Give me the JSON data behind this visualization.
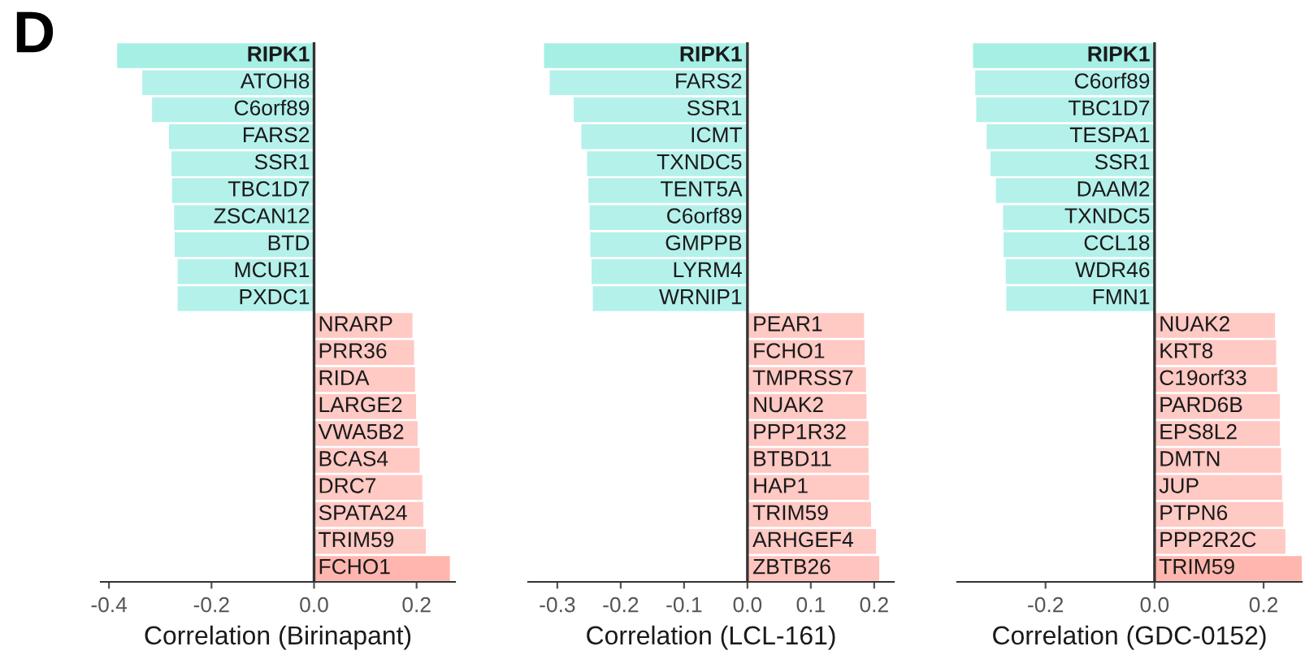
{
  "chart_data": [
    {
      "type": "bar",
      "orientation": "horizontal",
      "annotations": [
        "D"
      ],
      "xlabel": "Correlation (Birinapant)",
      "categories": [
        "RIPK1",
        "ATOH8",
        "C6orf89",
        "FARS2",
        "SSR1",
        "TBC1D7",
        "ZSCAN12",
        "BTD",
        "MCUR1",
        "PXDC1",
        "NRARP",
        "PRR36",
        "RIDA",
        "LARGE2",
        "VWA5B2",
        "BCAS4",
        "DRC7",
        "SPATA24",
        "TRIM59",
        "FCHO1"
      ],
      "values": [
        -0.384,
        -0.335,
        -0.316,
        -0.283,
        -0.278,
        -0.277,
        -0.273,
        -0.272,
        -0.266,
        -0.266,
        0.192,
        0.195,
        0.197,
        0.199,
        0.202,
        0.206,
        0.211,
        0.213,
        0.218,
        0.265
      ],
      "colors": [
        "#a6efe5",
        "#b4f1ea",
        "#b4f1ea",
        "#b4f1ea",
        "#b4f1ea",
        "#b4f1ea",
        "#b4f1ea",
        "#b4f1ea",
        "#b4f1ea",
        "#b4f1ea",
        "#ffc9c4",
        "#ffc9c4",
        "#ffc9c4",
        "#ffc9c4",
        "#ffc9c4",
        "#ffc9c4",
        "#ffc9c4",
        "#ffc9c4",
        "#ffc9c4",
        "#ffb6ae"
      ],
      "xlim": [
        -0.416,
        0.275
      ],
      "xticks": [
        {
          "value": -0.4,
          "label": "-0.4"
        },
        {
          "value": -0.2,
          "label": "-0.2"
        },
        {
          "value": 0,
          "label": "0.0"
        },
        {
          "value": 0.2,
          "label": "0.2"
        }
      ],
      "ref_lines": [
        {
          "axis": "x",
          "value": 0,
          "color": "#333333"
        }
      ],
      "tick_labels": "x",
      "grid": false,
      "legend": false
    },
    {
      "type": "bar",
      "orientation": "horizontal",
      "xlabel": "Correlation (LCL-161)",
      "categories": [
        "RIPK1",
        "FARS2",
        "SSR1",
        "ICMT",
        "TXNDC5",
        "TENT5A",
        "C6orf89",
        "GMPPB",
        "LYRM4",
        "WRNIP1",
        "PEAR1",
        "FCHO1",
        "TMPRSS7",
        "NUAK2",
        "PPP1R32",
        "BTBD11",
        "HAP1",
        "TRIM59",
        "ARHGEF4",
        "ZBTB26"
      ],
      "values": [
        -0.321,
        -0.312,
        -0.274,
        -0.262,
        -0.253,
        -0.251,
        -0.249,
        -0.248,
        -0.246,
        -0.244,
        0.184,
        0.185,
        0.187,
        0.188,
        0.191,
        0.191,
        0.192,
        0.195,
        0.203,
        0.208
      ],
      "colors": [
        "#a6efe5",
        "#b4f1ea",
        "#b4f1ea",
        "#b4f1ea",
        "#b4f1ea",
        "#b4f1ea",
        "#b4f1ea",
        "#b4f1ea",
        "#b4f1ea",
        "#b4f1ea",
        "#ffc9c4",
        "#ffc9c4",
        "#ffc9c4",
        "#ffc9c4",
        "#ffc9c4",
        "#ffc9c4",
        "#ffc9c4",
        "#ffc9c4",
        "#ffc9c4",
        "#ffc4bf"
      ],
      "xlim": [
        -0.346,
        0.231
      ],
      "xticks": [
        {
          "value": -0.3,
          "label": "-0.3"
        },
        {
          "value": -0.2,
          "label": "-0.2"
        },
        {
          "value": -0.1,
          "label": "-0.1"
        },
        {
          "value": 0,
          "label": "0.0"
        },
        {
          "value": 0.1,
          "label": "0.1"
        },
        {
          "value": 0.2,
          "label": "0.2"
        }
      ],
      "ref_lines": [
        {
          "axis": "x",
          "value": 0,
          "color": "#333333"
        }
      ],
      "tick_labels": "x",
      "grid": false,
      "legend": false
    },
    {
      "type": "bar",
      "orientation": "horizontal",
      "xlabel": "Correlation (GDC-0152)",
      "categories": [
        "RIPK1",
        "C6orf89",
        "TBC1D7",
        "TESPA1",
        "SSR1",
        "DAAM2",
        "TXNDC5",
        "CCL18",
        "WDR46",
        "FMN1",
        "NUAK2",
        "KRT8",
        "C19orf33",
        "PARD6B",
        "EPS8L2",
        "DMTN",
        "JUP",
        "PTPN6",
        "PPP2R2C",
        "TRIM59"
      ],
      "values": [
        -0.333,
        -0.329,
        -0.327,
        -0.308,
        -0.301,
        -0.291,
        -0.278,
        -0.277,
        -0.273,
        -0.272,
        0.221,
        0.223,
        0.225,
        0.23,
        0.23,
        0.232,
        0.234,
        0.236,
        0.24,
        0.27
      ],
      "colors": [
        "#a6efe5",
        "#b4f1ea",
        "#b4f1ea",
        "#b4f1ea",
        "#b4f1ea",
        "#b4f1ea",
        "#b4f1ea",
        "#b4f1ea",
        "#b4f1ea",
        "#b4f1ea",
        "#ffc9c4",
        "#ffc9c4",
        "#ffc9c4",
        "#ffc9c4",
        "#ffc9c4",
        "#ffc9c4",
        "#ffc9c4",
        "#ffc9c4",
        "#ffc9c4",
        "#ffb6ae"
      ],
      "xlim": [
        -0.362,
        0.27
      ],
      "xticks": [
        {
          "value": -0.2,
          "label": "-0.2"
        },
        {
          "value": 0,
          "label": "0.0"
        },
        {
          "value": 0.2,
          "label": "0.2"
        }
      ],
      "ref_lines": [
        {
          "axis": "x",
          "value": 0,
          "color": "#333333"
        }
      ],
      "tick_labels": "x",
      "grid": false,
      "legend": false
    }
  ]
}
